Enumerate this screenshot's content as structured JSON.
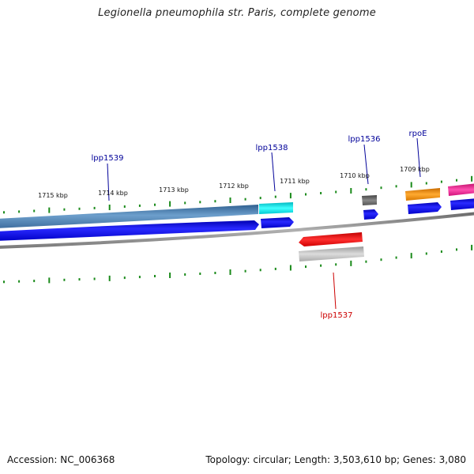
{
  "title": "Legionella pneumophila str. Paris, complete genome",
  "footer": {
    "accession": "Accession: NC_006368",
    "summary": "Topology: circular; Length: 3,503,610 bp; Genes: 3,080"
  },
  "ticks": [
    "1715 kbp",
    "1714 kbp",
    "1713 kbp",
    "1712 kbp",
    "1711 kbp",
    "1710 kbp",
    "1709 kbp"
  ],
  "genes": {
    "lpp1539": "lpp1539",
    "lpp1538": "lpp1538",
    "lpp1536": "lpp1536",
    "rpoE": "rpoE",
    "lpp1537": "lpp1537"
  },
  "colors": {
    "forward_cds": "#0000ee",
    "backbone": "#888888",
    "tick": "#1a8a1a",
    "label_forward": "#000099",
    "label_reverse": "#cc0000",
    "steelblue_gene": "#4a7fb0",
    "cyan_gene": "#00e0e8",
    "gray_gene": "#666666",
    "orange_gene": "#f08a00",
    "magenta_gene": "#ee1493",
    "red_gene": "#ee0000",
    "lightgray_gene": "#bbbbbb"
  }
}
